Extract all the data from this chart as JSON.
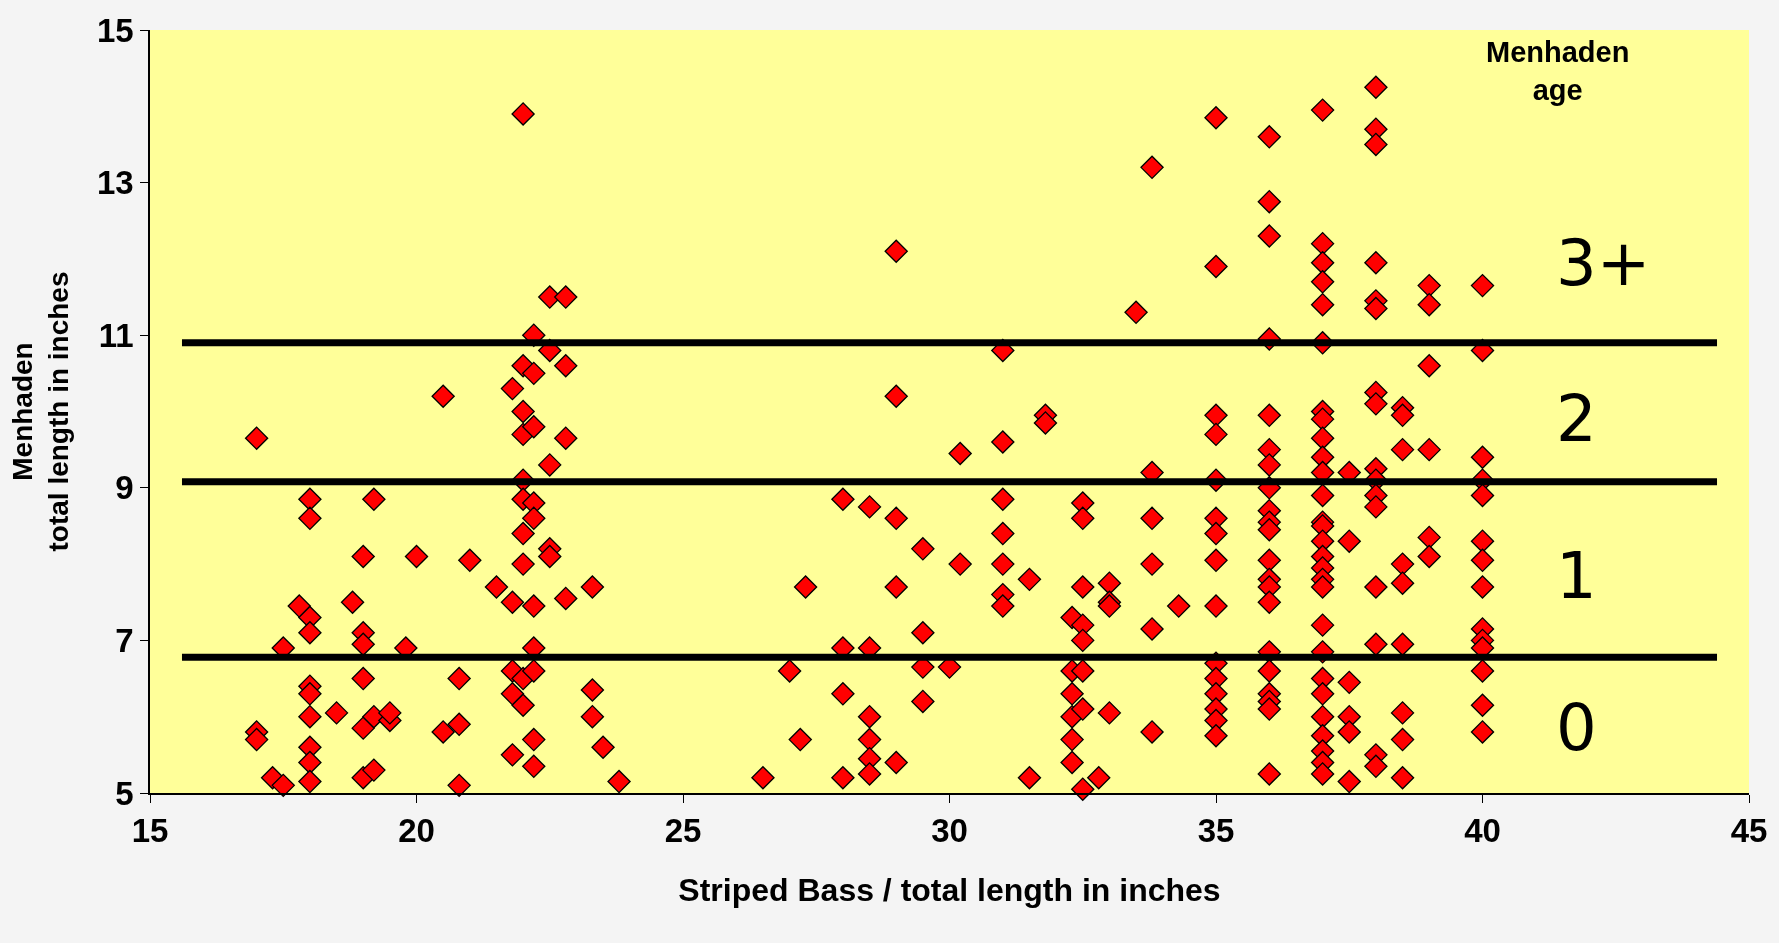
{
  "chart_data": {
    "type": "scatter",
    "xlabel": "Striped Bass / total length in inches",
    "ylabel": "Menhaden\ntotal length in inches",
    "xlim": [
      15,
      45
    ],
    "xticks": [
      15,
      20,
      25,
      30,
      35,
      40,
      45
    ],
    "ylim": [
      5,
      15
    ],
    "yticks": [
      5,
      7,
      9,
      11,
      13,
      15
    ],
    "grid": false,
    "marker": "diamond",
    "ref_lines": [
      {
        "axis": "y",
        "value": 10.9,
        "color": "#000000"
      },
      {
        "axis": "y",
        "value": 9.08,
        "color": "#000000"
      },
      {
        "axis": "y",
        "value": 6.78,
        "color": "#000000"
      }
    ],
    "annotations": [
      "Menhaden\nage",
      "3+",
      "2",
      "1",
      "0"
    ],
    "series": [
      {
        "color": "#ff0000",
        "x": [
          17,
          17,
          17,
          17.3,
          17.5,
          17.5,
          17.8,
          18,
          18,
          18,
          18,
          18,
          18,
          18,
          18,
          18,
          18,
          18.5,
          18.8,
          19,
          19,
          19,
          19,
          19,
          19,
          19.2,
          19.2,
          19.2,
          19.5,
          19.5,
          19.8,
          20,
          20.5,
          20.5,
          20.8,
          20.8,
          20.8,
          21,
          21.5,
          21.8,
          21.8,
          21.8,
          21.8,
          21.8,
          22,
          22,
          22,
          22,
          22,
          22,
          22,
          22,
          22,
          22,
          22.2,
          22.2,
          22.2,
          22.2,
          22.2,
          22.2,
          22.2,
          22.2,
          22.2,
          22.2,
          22.5,
          22.5,
          22.5,
          22.5,
          22.5,
          22.8,
          22.8,
          22.8,
          22.8,
          23.3,
          23.3,
          23.3,
          23.5,
          23.8,
          26.5,
          27,
          27.2,
          27.3,
          28,
          28,
          28,
          28,
          28.5,
          28.5,
          28.5,
          28.5,
          28.5,
          28.5,
          29,
          29,
          29,
          29,
          29,
          29.5,
          29.5,
          29.5,
          29.5,
          30,
          30.2,
          30.2,
          31,
          31,
          31,
          31,
          31,
          31,
          31,
          31.5,
          31.5,
          31.8,
          31.8,
          32.3,
          32.3,
          32.3,
          32.3,
          32.3,
          32.3,
          32.5,
          32.5,
          32.5,
          32.5,
          32.5,
          32.5,
          32.5,
          32.5,
          32.8,
          33,
          33,
          33,
          33,
          33.5,
          33.8,
          33.8,
          33.8,
          33.8,
          33.8,
          33.8,
          34.3,
          35,
          35,
          35,
          35,
          35,
          35,
          35,
          35,
          35,
          35,
          35,
          35,
          35,
          35,
          35,
          36,
          36,
          36,
          36,
          36,
          36,
          36,
          36,
          36,
          36,
          36,
          36,
          36,
          36,
          36,
          36,
          36,
          36,
          36,
          36,
          36,
          37,
          37,
          37,
          37,
          37,
          37,
          37,
          37,
          37,
          37,
          37,
          37,
          37,
          37,
          37,
          37,
          37,
          37,
          37,
          37,
          37,
          37,
          37,
          37,
          37,
          37,
          37,
          37,
          37.5,
          37.5,
          37.5,
          37.5,
          37.5,
          37.5,
          38,
          38,
          38,
          38,
          38,
          38,
          38,
          38,
          38,
          38,
          38,
          38,
          38,
          38,
          38,
          38,
          38.5,
          38.5,
          38.5,
          38.5,
          38.5,
          38.5,
          38.5,
          38.5,
          38.5,
          39,
          39,
          39,
          39,
          39,
          39,
          40,
          40,
          40,
          40,
          40,
          40,
          40,
          40,
          40,
          40,
          40,
          40,
          40,
          40
        ],
        "values": [
          9.65,
          5.8,
          5.7,
          5.2,
          6.9,
          5.1,
          7.45,
          7.3,
          7.1,
          8.85,
          8.6,
          6.4,
          6.3,
          6.0,
          5.6,
          5.4,
          5.15,
          6.05,
          7.5,
          8.1,
          7.1,
          6.95,
          6.5,
          5.85,
          5.2,
          8.85,
          6.0,
          5.3,
          5.95,
          6.05,
          6.9,
          8.1,
          10.2,
          5.8,
          6.5,
          5.9,
          5.1,
          8.05,
          7.7,
          10.3,
          7.5,
          6.6,
          6.3,
          5.5,
          13.9,
          10.6,
          10.0,
          9.7,
          9.1,
          8.85,
          8.4,
          8.0,
          6.5,
          6.15,
          11.0,
          10.5,
          9.8,
          8.8,
          8.6,
          7.45,
          6.9,
          6.6,
          5.7,
          5.35,
          11.5,
          10.8,
          9.3,
          8.2,
          8.1,
          11.5,
          10.6,
          9.65,
          7.55,
          7.7,
          6.35,
          6.0,
          5.6,
          5.15,
          5.2,
          6.6,
          5.7,
          7.7,
          8.85,
          6.9,
          6.3,
          5.2,
          8.75,
          6.9,
          6.0,
          5.7,
          5.45,
          5.25,
          12.1,
          10.2,
          8.6,
          7.7,
          5.4,
          8.2,
          7.1,
          6.65,
          6.2,
          6.65,
          9.45,
          8.0,
          10.8,
          9.6,
          8.85,
          8.4,
          8.0,
          7.6,
          7.45,
          7.8,
          5.2,
          9.95,
          9.85,
          7.3,
          6.6,
          6.3,
          6.0,
          5.7,
          5.4,
          8.8,
          8.6,
          7.7,
          7.2,
          7.0,
          6.6,
          6.1,
          5.05,
          5.2,
          7.75,
          7.5,
          7.45,
          6.05,
          11.3,
          13.2,
          9.2,
          8.6,
          8.0,
          7.15,
          5.8,
          7.45,
          13.85,
          11.9,
          9.95,
          9.7,
          9.1,
          8.6,
          8.4,
          8.05,
          7.45,
          6.7,
          6.5,
          6.3,
          6.1,
          5.95,
          5.75,
          13.6,
          12.75,
          12.3,
          10.95,
          9.95,
          9.5,
          9.3,
          9.0,
          8.7,
          8.55,
          8.45,
          8.05,
          7.8,
          7.7,
          7.5,
          6.85,
          6.6,
          6.3,
          6.2,
          6.1,
          5.25,
          13.95,
          12.2,
          11.95,
          11.7,
          11.4,
          10.9,
          10.0,
          9.9,
          9.65,
          9.4,
          9.2,
          8.9,
          8.55,
          8.5,
          8.3,
          8.1,
          7.95,
          7.8,
          7.7,
          7.2,
          6.85,
          6.5,
          6.3,
          6.0,
          5.75,
          5.55,
          5.4,
          5.25,
          9.2,
          8.3,
          6.45,
          6.0,
          5.8,
          5.15,
          14.25,
          13.7,
          13.5,
          11.95,
          11.45,
          11.35,
          10.25,
          10.1,
          9.25,
          9.1,
          8.9,
          8.75,
          7.7,
          6.95,
          5.5,
          5.35,
          10.05,
          9.95,
          9.5,
          8.0,
          7.75,
          6.95,
          6.05,
          5.7,
          5.2,
          11.65,
          11.4,
          10.6,
          9.5,
          8.35,
          8.1,
          11.65,
          10.8,
          9.4,
          9.1,
          8.9,
          8.3,
          8.05,
          7.7,
          7.15,
          7.0,
          6.9,
          6.6,
          6.15,
          5.8
        ]
      }
    ]
  }
}
